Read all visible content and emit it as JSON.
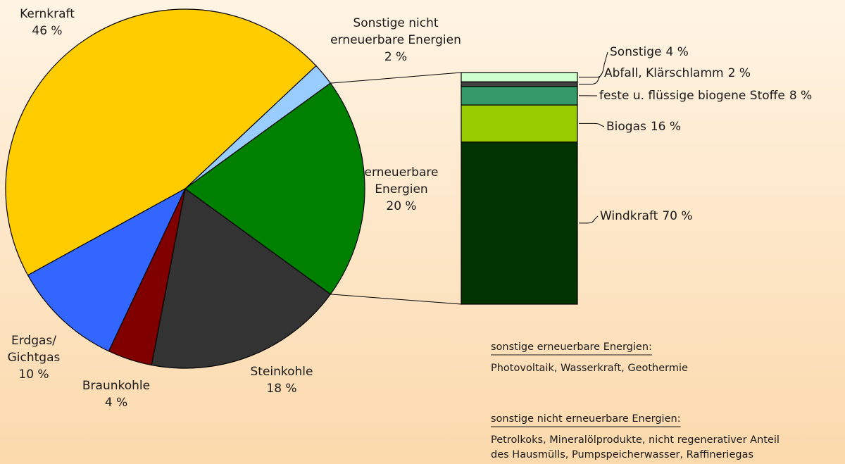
{
  "chart_data": [
    {
      "type": "pie",
      "categories": [
        [
          "Kernkraft"
        ],
        [
          "Sonstige nicht",
          "erneuerbare Energien"
        ],
        [
          "erneuerbare",
          "Energien"
        ],
        [
          "Steinkohle"
        ],
        [
          "Braunkohle"
        ],
        [
          "Erdgas/",
          "Gichtgas"
        ]
      ],
      "values": [
        46,
        2,
        20,
        18,
        4,
        10
      ],
      "value_labels": [
        "46 %",
        "2 %",
        "20 %",
        "18 %",
        "4 %",
        "10 %"
      ],
      "colors": [
        "#ffcc00",
        "#99ccff",
        "#008000",
        "#333333",
        "#800000",
        "#3366ff"
      ]
    },
    {
      "type": "stacked_bar",
      "categories": [
        "Windkraft",
        "Biogas",
        "feste u. flüssige biogene Stoffe",
        "Abfall, Klärschlamm",
        "Sonstige"
      ],
      "values": [
        70,
        16,
        8,
        2,
        4
      ],
      "value_labels": [
        "70 %",
        "16 %",
        "8 %",
        "2 %",
        "4 %"
      ],
      "colors": [
        "#003300",
        "#99cc00",
        "#339966",
        "#404040",
        "#ccffcc"
      ]
    }
  ],
  "notes": [
    {
      "heading": "sonstige erneuerbare Energien:",
      "lines": [
        "Photovoltaik, Wasserkraft, Geothermie"
      ]
    },
    {
      "heading": "sonstige nicht erneuerbare Energien:",
      "lines": [
        "Petrolkoks, Mineralölprodukte, nicht regenerativer Anteil",
        "des Hausmülls, Pumpspeicherwasser, Raffineriegas"
      ]
    }
  ]
}
